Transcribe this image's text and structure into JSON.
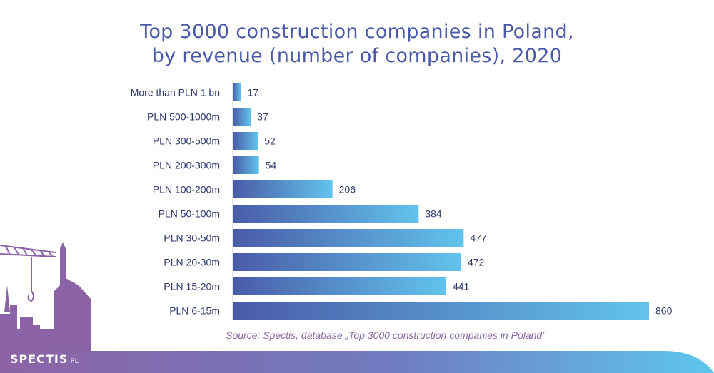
{
  "chart_data": {
    "type": "bar",
    "orientation": "horizontal",
    "title_lines": [
      "Top 3000 construction companies in Poland,",
      "by revenue (number of companies), 2020"
    ],
    "categories": [
      "More than PLN 1 bn",
      "PLN 500-1000m",
      "PLN 300-500m",
      "PLN 200-300m",
      "PLN 100-200m",
      "PLN 50-100m",
      "PLN 30-50m",
      "PLN 20-30m",
      "PLN 15-20m",
      "PLN 6-15m"
    ],
    "values": [
      17,
      37,
      52,
      54,
      206,
      384,
      477,
      472,
      441,
      860
    ],
    "xlabel": "",
    "ylabel": "",
    "grid": false,
    "legend": "none",
    "colors": {
      "bar_start": "#4a5ba8",
      "bar_end": "#62c3ec",
      "text": "#2e3a6e",
      "title": "#4a5aa8"
    }
  },
  "source": "Source: Spectis, database „Top 3000 construction companies in Poland”",
  "brand": {
    "name": "SPECTIS",
    "suffix": ".PL",
    "colors": {
      "purple": "#8c63a6",
      "blue": "#5ec6ec"
    }
  }
}
